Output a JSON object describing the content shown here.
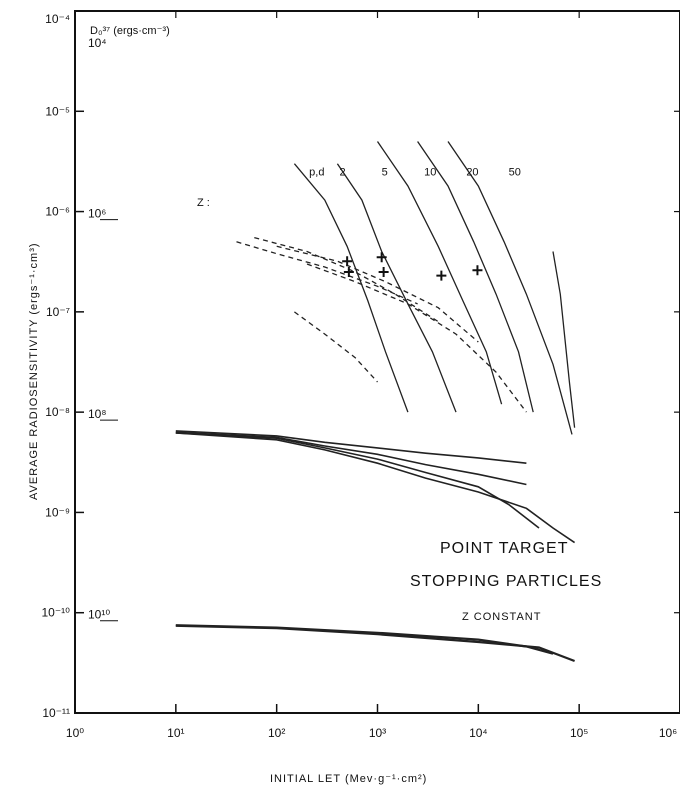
{
  "chart_data": {
    "type": "line",
    "title": "",
    "xlabel": "INITIAL LET (Mev·g⁻¹·cm²)",
    "ylabel": "AVERAGE RADIOSENSITIVITY (ergs⁻¹·cm³)",
    "xscale": "log",
    "yscale": "log",
    "xlim": [
      1,
      1000000
    ],
    "ylim": [
      1e-11,
      0.0001
    ],
    "x_ticks": [
      {
        "value": 1,
        "label": "10⁰"
      },
      {
        "value": 10,
        "label": "10¹"
      },
      {
        "value": 100,
        "label": "10²"
      },
      {
        "value": 1000,
        "label": "10³"
      },
      {
        "value": 10000,
        "label": "10⁴"
      },
      {
        "value": 100000,
        "label": "10⁵"
      },
      {
        "value": 1000000,
        "label": "10⁶"
      }
    ],
    "y_ticks": [
      {
        "value": 0.0001,
        "label": "10⁻⁴"
      },
      {
        "value": 1e-05,
        "label": "10⁻⁵"
      },
      {
        "value": 1e-06,
        "label": "10⁻⁶"
      },
      {
        "value": 1e-07,
        "label": "10⁻⁷"
      },
      {
        "value": 1e-08,
        "label": "10⁻⁸"
      },
      {
        "value": 1e-09,
        "label": "10⁻⁹"
      },
      {
        "value": 1e-10,
        "label": "10⁻¹⁰"
      },
      {
        "value": 1e-11,
        "label": "10⁻¹¹"
      }
    ],
    "d37_axis_title": "D₀³⁷ (ergs·cm⁻³)",
    "d37_labels": [
      {
        "value": 0.0001,
        "label": "10⁴"
      },
      {
        "value": 1e-06,
        "label": "10⁶"
      },
      {
        "value": 1e-08,
        "label": "10⁸"
      },
      {
        "value": 1e-10,
        "label": "10¹⁰"
      }
    ],
    "z_header": "Z :",
    "z_labels": [
      {
        "label": "p,d",
        "x": 210,
        "y": 2.3e-06
      },
      {
        "label": "2",
        "x": 420,
        "y": 2.3e-06
      },
      {
        "label": "5",
        "x": 1100,
        "y": 2.3e-06
      },
      {
        "label": "10",
        "x": 2900,
        "y": 2.3e-06
      },
      {
        "label": "20",
        "x": 7600,
        "y": 2.3e-06
      },
      {
        "label": "50",
        "x": 20000,
        "y": 2.3e-06
      }
    ],
    "annotations": [
      "POINT TARGET",
      "STOPPING PARTICLES",
      "Z CONSTANT"
    ],
    "grid": false,
    "series": [
      {
        "name": "",
        "points": [
          [
            10,
            6.5e-09
          ],
          [
            100,
            5.8e-09
          ],
          [
            300,
            5e-09
          ],
          [
            1000,
            4.4e-09
          ],
          [
            3000,
            3.9e-09
          ],
          [
            10000,
            3.5e-09
          ],
          [
            30000,
            3.1e-09
          ]
        ]
      },
      {
        "name": "",
        "points": [
          [
            10,
            6.3e-09
          ],
          [
            100,
            5.6e-09
          ],
          [
            300,
            4.6e-09
          ],
          [
            1000,
            3.8e-09
          ],
          [
            3000,
            3e-09
          ],
          [
            10000,
            2.4e-09
          ],
          [
            30000,
            1.9e-09
          ]
        ]
      },
      {
        "name": "",
        "points": [
          [
            10,
            6.2e-09
          ],
          [
            100,
            5.5e-09
          ],
          [
            300,
            4.4e-09
          ],
          [
            1000,
            3.4e-09
          ],
          [
            3000,
            2.5e-09
          ],
          [
            10000,
            1.8e-09
          ],
          [
            20000,
            1.2e-09
          ],
          [
            40000,
            7e-10
          ]
        ]
      },
      {
        "name": "",
        "points": [
          [
            10,
            6.2e-09
          ],
          [
            100,
            5.3e-09
          ],
          [
            300,
            4.2e-09
          ],
          [
            1000,
            3.1e-09
          ],
          [
            3000,
            2.2e-09
          ],
          [
            10000,
            1.6e-09
          ],
          [
            30000,
            1.1e-09
          ],
          [
            55000,
            7e-10
          ],
          [
            90000,
            5e-10
          ]
        ]
      },
      {
        "name": "",
        "points": [
          [
            10,
            7.5e-11
          ],
          [
            100,
            7.1e-11
          ],
          [
            1000,
            6.3e-11
          ],
          [
            10000,
            5.4e-11
          ],
          [
            30000,
            4.6e-11
          ],
          [
            55000,
            3.9e-11
          ]
        ]
      },
      {
        "name": "",
        "points": [
          [
            10,
            7.4e-11
          ],
          [
            100,
            7e-11
          ],
          [
            1000,
            6.1e-11
          ],
          [
            10000,
            5.1e-11
          ],
          [
            40000,
            4.5e-11
          ],
          [
            90000,
            3.3e-11
          ]
        ]
      },
      {
        "name": "",
        "points": [
          [
            150,
            3e-06
          ],
          [
            300,
            1.3e-06
          ],
          [
            500,
            4.5e-07
          ],
          [
            800,
            1.3e-07
          ],
          [
            1200,
            4e-08
          ],
          [
            2000,
            1e-08
          ]
        ]
      },
      {
        "name": "",
        "points": [
          [
            400,
            3e-06
          ],
          [
            700,
            1.3e-06
          ],
          [
            1100,
            4e-07
          ],
          [
            2000,
            1.2e-07
          ],
          [
            3500,
            4e-08
          ],
          [
            6000,
            1e-08
          ]
        ]
      },
      {
        "name": "",
        "points": [
          [
            1000,
            5e-06
          ],
          [
            2000,
            1.8e-06
          ],
          [
            4000,
            4.5e-07
          ],
          [
            7000,
            1.3e-07
          ],
          [
            12000,
            4e-08
          ],
          [
            17000,
            1.2e-08
          ]
        ]
      },
      {
        "name": "",
        "points": [
          [
            2500,
            5e-06
          ],
          [
            5000,
            1.8e-06
          ],
          [
            9000,
            5e-07
          ],
          [
            15000,
            1.5e-07
          ],
          [
            25000,
            4e-08
          ],
          [
            35000,
            1e-08
          ]
        ]
      },
      {
        "name": "",
        "points": [
          [
            5000,
            5e-06
          ],
          [
            10000,
            1.8e-06
          ],
          [
            18000,
            5e-07
          ],
          [
            30000,
            1.5e-07
          ],
          [
            55000,
            3e-08
          ],
          [
            85000,
            6e-09
          ]
        ]
      },
      {
        "name": "",
        "points": [
          [
            55000,
            4e-07
          ],
          [
            65000,
            1.5e-07
          ],
          [
            80000,
            2e-08
          ],
          [
            90000,
            7e-09
          ]
        ]
      },
      {
        "name": "",
        "points": [
          [
            40,
            5e-07
          ],
          [
            100,
            3.8e-07
          ],
          [
            300,
            2.8e-07
          ],
          [
            1000,
            1.8e-07
          ],
          [
            2500,
            1.2e-07
          ]
        ]
      },
      {
        "name": "",
        "points": [
          [
            60,
            5.5e-07
          ],
          [
            200,
            4e-07
          ],
          [
            600,
            2.5e-07
          ],
          [
            1500,
            1.5e-07
          ],
          [
            4000,
            8e-08
          ]
        ]
      },
      {
        "name": "",
        "points": [
          [
            100,
            4.5e-07
          ],
          [
            400,
            3.2e-07
          ],
          [
            1200,
            2e-07
          ],
          [
            4000,
            1.1e-07
          ],
          [
            10000,
            5e-08
          ]
        ]
      },
      {
        "name": "",
        "points": [
          [
            200,
            3e-07
          ],
          [
            600,
            2e-07
          ],
          [
            2000,
            1.2e-07
          ],
          [
            6000,
            6e-08
          ],
          [
            15000,
            2.5e-08
          ],
          [
            30000,
            1e-08
          ]
        ]
      },
      {
        "name": "",
        "points": [
          [
            150,
            1e-07
          ],
          [
            300,
            6e-08
          ],
          [
            600,
            3.5e-08
          ],
          [
            1000,
            2e-08
          ]
        ]
      }
    ],
    "markers": [
      [
        500,
        3.2e-07
      ],
      [
        520,
        2.5e-07
      ],
      [
        1100,
        3.5e-07
      ],
      [
        1150,
        2.5e-07
      ],
      [
        4300,
        2.3e-07
      ],
      [
        9800,
        2.6e-07
      ]
    ]
  }
}
